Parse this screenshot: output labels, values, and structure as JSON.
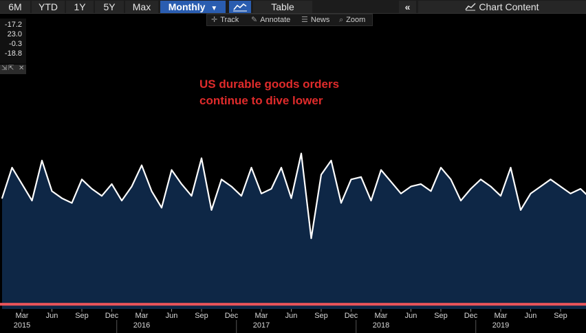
{
  "toolbar": {
    "periods": [
      "6M",
      "YTD",
      "1Y",
      "5Y",
      "Max"
    ],
    "frequency": "Monthly",
    "chart_icon": "line-chart-icon",
    "table_label": "Table",
    "collapse_icon": "double-chevron-left-icon",
    "chart_content_label": "Chart Content",
    "chart_content_icon": "line-chart-icon"
  },
  "subtools": {
    "track": "Track",
    "annotate": "Annotate",
    "news": "News",
    "zoom": "Zoom"
  },
  "legend": {
    "values": [
      "-17.2",
      "23.0",
      "-0.3",
      "-18.8"
    ]
  },
  "annotation": {
    "line1": "US durable goods orders",
    "line2": "continue to dive lower"
  },
  "colors": {
    "background": "#000000",
    "plot_area_fill": "#0e2746",
    "series_line": "#ffffff",
    "reference_line": "#e8545a",
    "annotation_text": "#e02b2b",
    "toolbar_active": "#2a5db0"
  },
  "chart_data": {
    "type": "area",
    "title": "",
    "xlabel": "",
    "ylabel": "",
    "x_ticks": [
      {
        "month": "Mar",
        "year": "2015"
      },
      {
        "month": "Jun",
        "year": ""
      },
      {
        "month": "Sep",
        "year": ""
      },
      {
        "month": "Dec",
        "year": ""
      },
      {
        "month": "Mar",
        "year": "2016"
      },
      {
        "month": "Jun",
        "year": ""
      },
      {
        "month": "Sep",
        "year": ""
      },
      {
        "month": "Dec",
        "year": ""
      },
      {
        "month": "Mar",
        "year": "2017"
      },
      {
        "month": "Jun",
        "year": ""
      },
      {
        "month": "Sep",
        "year": ""
      },
      {
        "month": "Dec",
        "year": ""
      },
      {
        "month": "Mar",
        "year": "2018"
      },
      {
        "month": "Jun",
        "year": ""
      },
      {
        "month": "Sep",
        "year": ""
      },
      {
        "month": "Dec",
        "year": ""
      },
      {
        "month": "Mar",
        "year": "2019"
      },
      {
        "month": "Jun",
        "year": ""
      },
      {
        "month": "Sep",
        "year": ""
      }
    ],
    "x_start": "2015-01",
    "series": [
      {
        "values": [
          -5,
          8,
          1,
          -6,
          11,
          -2,
          -5,
          -7,
          3,
          -1,
          -4,
          1,
          -6,
          0,
          9,
          -2,
          -9,
          7,
          1,
          -4,
          12,
          -10,
          3,
          0,
          -4,
          8,
          -3,
          -1,
          8,
          -5,
          14,
          -22,
          5,
          11,
          -7,
          3,
          4,
          -6,
          7,
          2,
          -3,
          0,
          1,
          -2,
          8,
          3,
          -6,
          -1,
          3,
          0,
          -4,
          8,
          -10,
          -3,
          0,
          3,
          0,
          -3,
          -1,
          -5,
          0
        ],
        "color": "#ffffff"
      }
    ],
    "reference_line_value": -50,
    "ylim": [
      -52,
      50
    ],
    "grid": false,
    "legend": "none"
  }
}
